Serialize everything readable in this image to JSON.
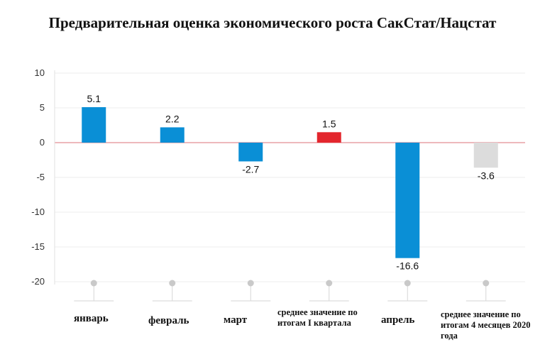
{
  "chart_data": {
    "type": "bar",
    "title": "Предварительная оценка экономического роста СакСтат/Нацстат",
    "xlabel": "",
    "ylabel": "",
    "ylim": [
      -20,
      10
    ],
    "yticks": [
      "10",
      "5",
      "0",
      "-5",
      "-10",
      "-15",
      "-20"
    ],
    "grid": true,
    "legend": "none",
    "categories": [
      "январь",
      "февраль",
      "март",
      "среднее значение по итогам I квартала",
      "апрель",
      "среднее значение по итогам 4 месяцев 2020 года"
    ],
    "values": [
      5.1,
      2.2,
      -2.7,
      1.5,
      -16.6,
      -3.6
    ],
    "value_labels": [
      "5.1",
      "2.2",
      "-2.7",
      "1.5",
      "-16.6",
      "-3.6"
    ],
    "colors": [
      "#0a8fd6",
      "#0a8fd6",
      "#0a8fd6",
      "#e3262d",
      "#0a8fd6",
      "#dcdcdc"
    ],
    "zero_line_color": "#e8a0a6"
  }
}
